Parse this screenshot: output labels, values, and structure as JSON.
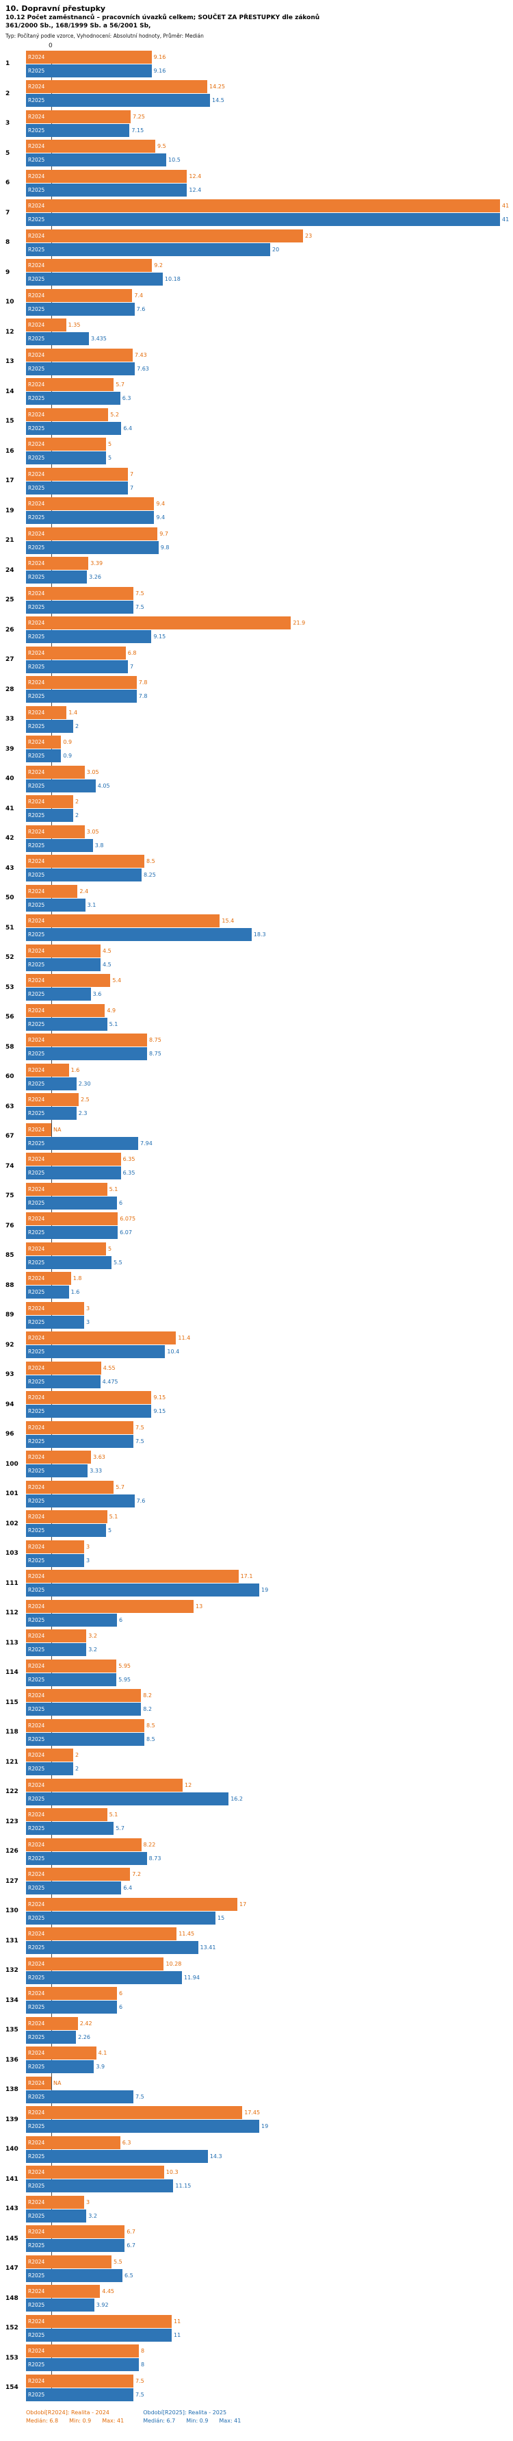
{
  "header": {
    "title": "10. Dopravní přestupky",
    "subtitle": "10.12 Počet zaměstnanců – pracovních úvazků celkem; SOUČET ZA PŘESTUPKY dle zákonů 361/2000 Sb., 168/1999 Sb. a 56/2001 Sb,",
    "meta": "Typ: Počítaný podle vzorce, Vyhodnocení: Absolutní hodnoty, Průměr: Medián"
  },
  "axis": {
    "zero_label": "0"
  },
  "series_meta": [
    {
      "key": "R2024",
      "period_label": "Období[R2024]: Realita - 2024",
      "color": "#ED7D31",
      "text_color": "#E36C0A",
      "median_text": "Medián: 6.8",
      "min_text": "Min: 0.9",
      "max_text": "Max: 41"
    },
    {
      "key": "R2025",
      "period_label": "Období[R2025]: Realita - 2025",
      "color": "#2E75B6",
      "text_color": "#1F6CB0",
      "median_text": "Medián: 6.7",
      "min_text": "Min: 0.9",
      "max_text": "Max: 41"
    }
  ],
  "chart_data": {
    "type": "bar",
    "orientation": "horizontal",
    "title": "10.12 Počet zaměstnanců – pracovních úvazků celkem; SOUČET ZA PŘESTUPKY dle zákonů 361/2000 Sb., 168/1999 Sb. a 56/2001 Sb",
    "xlim": [
      0,
      41
    ],
    "legend_position": "bottom",
    "categories": [
      "1",
      "2",
      "3",
      "5",
      "6",
      "7",
      "8",
      "9",
      "10",
      "12",
      "13",
      "14",
      "15",
      "16",
      "17",
      "19",
      "21",
      "24",
      "25",
      "26",
      "27",
      "28",
      "33",
      "39",
      "40",
      "41",
      "42",
      "43",
      "50",
      "51",
      "52",
      "53",
      "56",
      "58",
      "60",
      "63",
      "67",
      "74",
      "75",
      "76",
      "85",
      "88",
      "89",
      "92",
      "93",
      "94",
      "96",
      "100",
      "101",
      "102",
      "103",
      "111",
      "112",
      "113",
      "114",
      "115",
      "118",
      "121",
      "122",
      "123",
      "126",
      "127",
      "130",
      "131",
      "132",
      "134",
      "135",
      "136",
      "138",
      "139",
      "140",
      "141",
      "143",
      "145",
      "147",
      "148",
      "152",
      "153",
      "154"
    ],
    "series": [
      {
        "name": "R2024",
        "values": [
          "9.16",
          "14.25",
          "7.25",
          "9.5",
          "12.4",
          "41",
          "23",
          "9.2",
          "7.4",
          "1.35",
          "7.43",
          "5.7",
          "5.2",
          "5",
          "7",
          "9.4",
          "9.7",
          "3.39",
          "7.5",
          "21.9",
          "6.8",
          "7.8",
          "1.4",
          "0.9",
          "3.05",
          "2",
          "3.05",
          "8.5",
          "2.4",
          "15.4",
          "4.5",
          "5.4",
          "4.9",
          "8.75",
          "1.6",
          "2.5",
          "NA",
          "6.35",
          "5.1",
          "6.075",
          "5",
          "1.8",
          "3",
          "11.4",
          "4.55",
          "9.15",
          "7.5",
          "3.63",
          "5.7",
          "5.1",
          "3",
          "17.1",
          "13",
          "3.2",
          "5.95",
          "8.2",
          "8.5",
          "2",
          "12",
          "5.1",
          "8.22",
          "7.2",
          "17",
          "11.45",
          "10.28",
          "6",
          "2.42",
          "4.1",
          "NA",
          "17.45",
          "6.3",
          "10.3",
          "3",
          "6.7",
          "5.5",
          "4.45",
          "11",
          "8",
          "7.5"
        ]
      },
      {
        "name": "R2025",
        "values": [
          "9.16",
          "14.5",
          "7.15",
          "10.5",
          "12.4",
          "41",
          "20",
          "10.18",
          "7.6",
          "3.435",
          "7.63",
          "6.3",
          "6.4",
          "5",
          "7",
          "9.4",
          "9.8",
          "3.26",
          "7.5",
          "9.15",
          "7",
          "7.8",
          "2",
          "0.9",
          "4.05",
          "2",
          "3.8",
          "8.25",
          "3.1",
          "18.3",
          "4.5",
          "3.6",
          "5.1",
          "8.75",
          "2.30",
          "2.3",
          "7.94",
          "6.35",
          "6",
          "6.07",
          "5.5",
          "1.6",
          "3",
          "10.4",
          "4.475",
          "9.15",
          "7.5",
          "3.33",
          "7.6",
          "5",
          "3",
          "19",
          "6",
          "3.2",
          "5.95",
          "8.2",
          "8.5",
          "2",
          "16.2",
          "5.7",
          "8.73",
          "6.4",
          "15",
          "13.41",
          "11.94",
          "6",
          "2.26",
          "3.9",
          "7.5",
          "19",
          "14.3",
          "11.15",
          "3.2",
          "6.7",
          "6.5",
          "3.92",
          "11",
          "8",
          "7.5"
        ]
      }
    ],
    "stats": {
      "R2024": {
        "median": 6.8,
        "min": 0.9,
        "max": 41
      },
      "R2025": {
        "median": 6.7,
        "min": 0.9,
        "max": 41
      }
    }
  }
}
